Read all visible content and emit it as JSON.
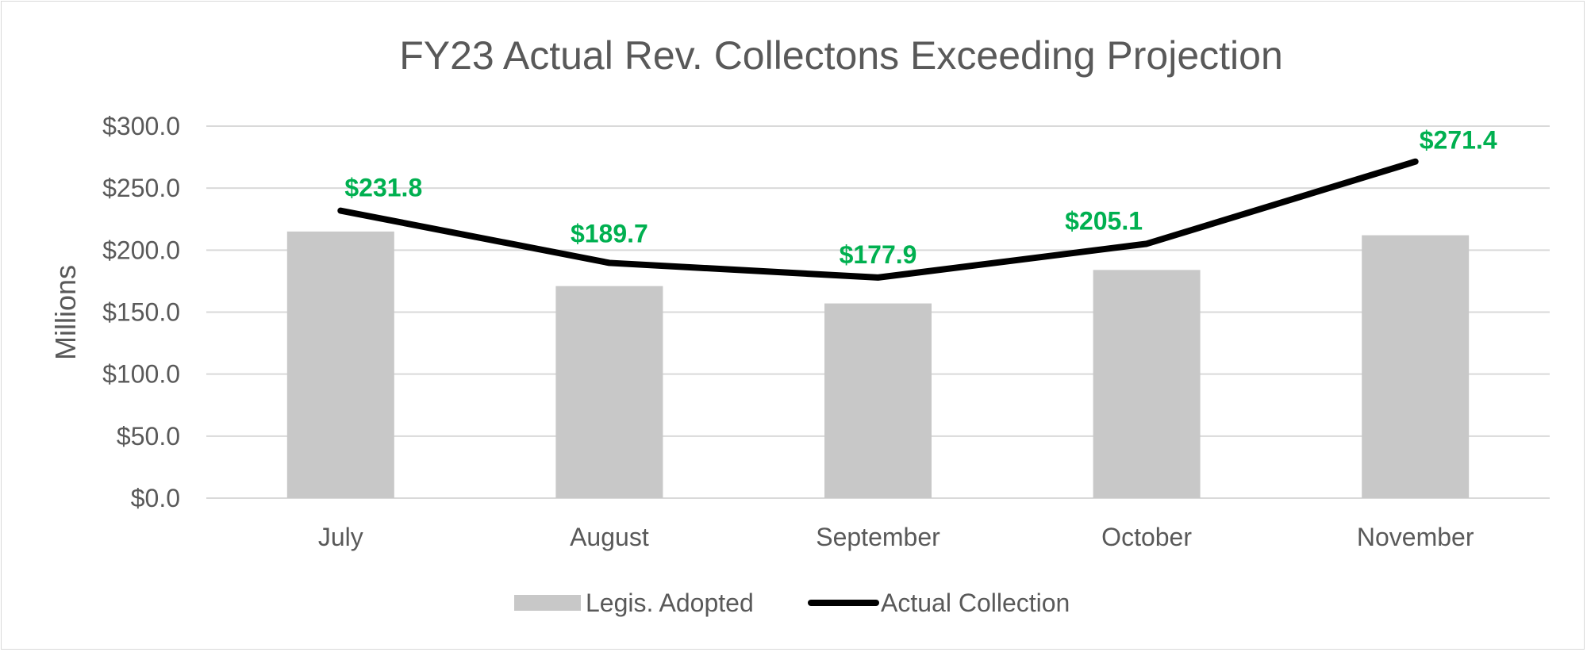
{
  "chart_data": {
    "type": "bar",
    "title": "FY23 Actual Rev. Collectons Exceeding Projection",
    "ylabel": "Millions",
    "xlabel": "",
    "categories": [
      "July",
      "August",
      "September",
      "October",
      "November"
    ],
    "ylim": [
      0,
      300
    ],
    "yticks": [
      0,
      50,
      100,
      150,
      200,
      250,
      300
    ],
    "ytick_labels": [
      "$0.0",
      "$50.0",
      "$100.0",
      "$150.0",
      "$200.0",
      "$250.0",
      "$300.0"
    ],
    "grid": true,
    "legend_position": "bottom",
    "series": [
      {
        "name": "Legis. Adopted",
        "type": "bar",
        "color": "#c8c8c8",
        "values": [
          215,
          171,
          157,
          184,
          212
        ]
      },
      {
        "name": "Actual Collection",
        "type": "line",
        "color": "#000000",
        "values": [
          231.8,
          189.7,
          177.9,
          205.1,
          271.4
        ],
        "data_labels": [
          "$231.8",
          "$189.7",
          "$177.9",
          "$205.1",
          "$271.4"
        ],
        "label_color": "#00b050"
      }
    ]
  }
}
